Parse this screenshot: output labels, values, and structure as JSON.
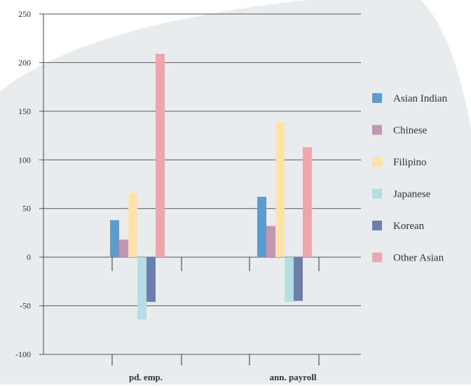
{
  "chart_data": {
    "type": "bar",
    "categories": [
      "pd. emp.",
      "ann. payroll"
    ],
    "series": [
      {
        "name": "Asian Indian",
        "color": "#5b9bd0",
        "values": [
          38,
          62
        ]
      },
      {
        "name": "Chinese",
        "color": "#c295b2",
        "values": [
          18,
          32
        ]
      },
      {
        "name": "Filipino",
        "color": "#fde3a8",
        "values": [
          66,
          139
        ]
      },
      {
        "name": "Japanese",
        "color": "#b4dde4",
        "values": [
          -64,
          -46
        ]
      },
      {
        "name": "Korean",
        "color": "#6a7fae",
        "values": [
          -46,
          -45
        ]
      },
      {
        "name": "Other Asian",
        "color": "#eba7ac",
        "values": [
          209,
          113
        ]
      }
    ],
    "ylim": [
      -100,
      250
    ],
    "yticks": [
      -100,
      -50,
      0,
      50,
      100,
      150,
      200,
      250
    ],
    "grid": true,
    "legend": "right",
    "background_color": "#e9ecec"
  }
}
